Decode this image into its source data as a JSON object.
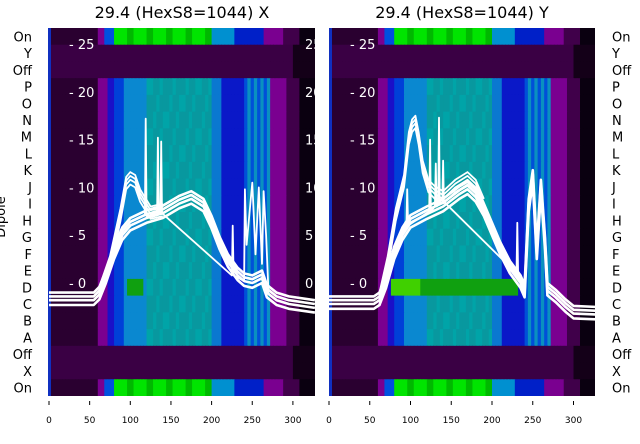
{
  "chart_data": [
    {
      "type": "heatmap",
      "title": "29.4 (HexS8=1044) X",
      "ylabel": "Dipole",
      "row_labels": [
        "On",
        "Y",
        "Off",
        "P",
        "O",
        "N",
        "M",
        "L",
        "K",
        "J",
        "I",
        "H",
        "G",
        "F",
        "E",
        "D",
        "C",
        "B",
        "A",
        "Off",
        "X",
        "On"
      ],
      "xticks": [
        0,
        50,
        100,
        150,
        200,
        250,
        300
      ],
      "xlim": [
        0,
        327
      ],
      "y2ticks": [
        0,
        5,
        10,
        15,
        20,
        25
      ],
      "y2lim": [
        -11.8,
        26.7
      ],
      "overlay_series": [
        {
          "name": "mean",
          "points": [
            [
              0,
              -1.8
            ],
            [
              55,
              -1.8
            ],
            [
              62,
              -1.2
            ],
            [
              70,
              0.5
            ],
            [
              80,
              3
            ],
            [
              90,
              5
            ],
            [
              100,
              6
            ],
            [
              120,
              6.8
            ],
            [
              140,
              7.3
            ],
            [
              160,
              8.3
            ],
            [
              175,
              8.8
            ],
            [
              190,
              8
            ],
            [
              200,
              6.2
            ],
            [
              210,
              4
            ],
            [
              220,
              2.2
            ],
            [
              232,
              0.8
            ],
            [
              240,
              0.2
            ],
            [
              250,
              0
            ],
            [
              262,
              0.5
            ],
            [
              268,
              -1
            ],
            [
              280,
              -1.8
            ],
            [
              295,
              -2.2
            ],
            [
              327,
              -2.6
            ]
          ]
        },
        {
          "name": "bump",
          "points": [
            [
              62,
              -1.2
            ],
            [
              75,
              2
            ],
            [
              88,
              7
            ],
            [
              95,
              10.3
            ],
            [
              100,
              10.8
            ],
            [
              106,
              10.5
            ],
            [
              112,
              9
            ],
            [
              125,
              7.2
            ],
            [
              140,
              7.5
            ]
          ]
        },
        {
          "name": "spikes",
          "points": [
            [
              118,
              7
            ],
            [
              119,
              17.2
            ],
            [
              120,
              7
            ],
            [
              133,
              7.2
            ],
            [
              134,
              15.2
            ],
            [
              135,
              7.2
            ],
            [
              137,
              7.3
            ],
            [
              138,
              14.8
            ],
            [
              139,
              7.3
            ],
            [
              225,
              0.8
            ],
            [
              226,
              6
            ],
            [
              227,
              0.8
            ],
            [
              240,
              0.2
            ],
            [
              241,
              9.8
            ],
            [
              243,
              4
            ],
            [
              250,
              10.5
            ],
            [
              254,
              3
            ],
            [
              258,
              10
            ],
            [
              262,
              2
            ],
            [
              264,
              9.6
            ],
            [
              267,
              5
            ],
            [
              270,
              -1
            ]
          ]
        }
      ]
    },
    {
      "type": "heatmap",
      "title": "29.4 (HexS8=1044) Y",
      "row_labels": [
        "On",
        "Y",
        "Off",
        "P",
        "O",
        "N",
        "M",
        "L",
        "K",
        "J",
        "I",
        "H",
        "G",
        "F",
        "E",
        "D",
        "C",
        "B",
        "A",
        "Off",
        "X",
        "On"
      ],
      "xticks": [
        0,
        50,
        100,
        150,
        200,
        250,
        300
      ],
      "xlim": [
        0,
        327
      ],
      "y2ticks": [
        0,
        5,
        10,
        15,
        20,
        25
      ],
      "y2lim": [
        -11.8,
        26.7
      ],
      "overlay_series": [
        {
          "name": "mean",
          "points": [
            [
              0,
              -2.2
            ],
            [
              55,
              -2.2
            ],
            [
              62,
              -1.8
            ],
            [
              70,
              0
            ],
            [
              80,
              3
            ],
            [
              90,
              5
            ],
            [
              100,
              6.3
            ],
            [
              120,
              7.2
            ],
            [
              140,
              8
            ],
            [
              160,
              9.3
            ],
            [
              170,
              9.8
            ],
            [
              180,
              9
            ],
            [
              190,
              7.5
            ],
            [
              200,
              5.5
            ],
            [
              210,
              3.5
            ],
            [
              222,
              1.5
            ],
            [
              235,
              0
            ],
            [
              240,
              -1
            ],
            [
              245,
              8
            ],
            [
              250,
              11
            ],
            [
              255,
              3
            ],
            [
              260,
              10
            ],
            [
              265,
              4
            ],
            [
              268,
              -0.8
            ],
            [
              278,
              -1.5
            ],
            [
              290,
              -2.5
            ],
            [
              300,
              -3.2
            ],
            [
              327,
              -3.3
            ]
          ]
        },
        {
          "name": "upper",
          "points": [
            [
              140,
              8.8
            ],
            [
              155,
              10
            ],
            [
              170,
              10.8
            ],
            [
              180,
              10
            ],
            [
              190,
              8
            ]
          ]
        },
        {
          "name": "bump",
          "points": [
            [
              62,
              -1.8
            ],
            [
              72,
              2
            ],
            [
              82,
              7
            ],
            [
              92,
              10.5
            ],
            [
              98,
              15
            ],
            [
              102,
              16.3
            ],
            [
              106,
              16.7
            ],
            [
              110,
              15
            ],
            [
              115,
              12
            ],
            [
              122,
              10
            ],
            [
              130,
              9.3
            ],
            [
              140,
              8.8
            ]
          ]
        },
        {
          "name": "spikes",
          "points": [
            [
              95,
              6
            ],
            [
              96,
              9.8
            ],
            [
              97,
              6
            ],
            [
              123,
              7.5
            ],
            [
              124,
              15
            ],
            [
              125,
              7.5
            ],
            [
              130,
              8
            ],
            [
              131,
              12.5
            ],
            [
              132,
              8
            ],
            [
              134,
              8.2
            ],
            [
              135,
              17.3
            ],
            [
              136,
              8.2
            ],
            [
              139,
              8.5
            ],
            [
              140,
              12.8
            ],
            [
              141,
              8.5
            ],
            [
              230,
              1
            ],
            [
              231,
              6.3
            ],
            [
              232,
              1
            ]
          ]
        }
      ]
    }
  ]
}
